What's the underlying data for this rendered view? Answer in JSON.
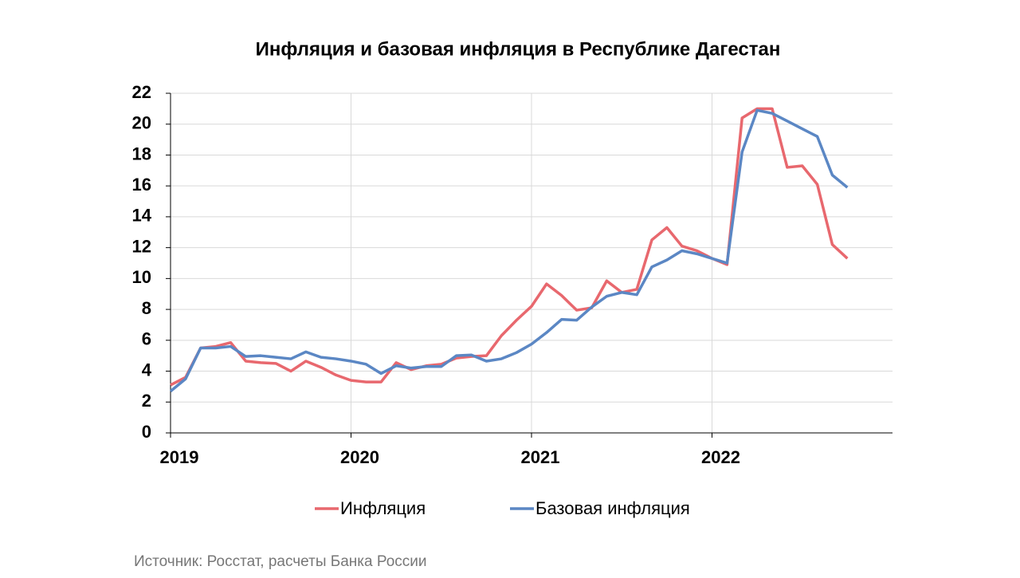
{
  "chart_data": {
    "type": "line",
    "title": "Инфляция и базовая инфляция в Республике Дагестан",
    "source": "Источник: Росстат, расчеты Банка России",
    "x": [
      0,
      1,
      2,
      3,
      4,
      5,
      6,
      7,
      8,
      9,
      10,
      11,
      12,
      13,
      14,
      15,
      16,
      17,
      18,
      19,
      20,
      21,
      22,
      23,
      24,
      25,
      26,
      27,
      28,
      29,
      30,
      31,
      32,
      33,
      34,
      35,
      36,
      37,
      38,
      39,
      40,
      41,
      42,
      43,
      44,
      45
    ],
    "series": [
      {
        "name": "Инфляция",
        "color": "#e8686e",
        "values": [
          3.1,
          3.6,
          5.5,
          5.6,
          5.85,
          4.65,
          4.55,
          4.5,
          4.0,
          4.65,
          4.25,
          3.75,
          3.4,
          3.3,
          3.3,
          4.55,
          4.1,
          4.35,
          4.45,
          4.85,
          4.95,
          5.0,
          6.3,
          7.3,
          8.2,
          9.65,
          8.9,
          7.95,
          8.1,
          9.85,
          9.1,
          9.3,
          12.5,
          13.3,
          12.1,
          11.8,
          11.3,
          10.9,
          20.4,
          21.0,
          21.0,
          17.2,
          17.3,
          16.1,
          12.2,
          11.3
        ]
      },
      {
        "name": "Базовая инфляция",
        "color": "#5b87c4",
        "values": [
          2.7,
          3.5,
          5.5,
          5.5,
          5.6,
          4.95,
          5.0,
          4.9,
          4.8,
          5.25,
          4.9,
          4.8,
          4.65,
          4.45,
          3.85,
          4.35,
          4.2,
          4.3,
          4.3,
          5.0,
          5.05,
          4.65,
          4.8,
          5.2,
          5.75,
          6.5,
          7.35,
          7.3,
          8.15,
          8.85,
          9.1,
          8.95,
          10.75,
          11.2,
          11.8,
          11.6,
          11.3,
          11.0,
          18.2,
          20.9,
          20.7,
          20.2,
          19.7,
          19.2,
          16.7,
          15.9
        ]
      }
    ],
    "xlim": [
      0,
      48
    ],
    "xticks": [
      {
        "value": 0,
        "label": "2019"
      },
      {
        "value": 12,
        "label": "2020"
      },
      {
        "value": 24,
        "label": "2021"
      },
      {
        "value": 36,
        "label": "2022"
      }
    ],
    "ylim": [
      0,
      22
    ],
    "yticks": [
      0,
      2,
      4,
      6,
      8,
      10,
      12,
      14,
      16,
      18,
      20,
      22
    ],
    "grid": true,
    "legend": "bottom"
  }
}
